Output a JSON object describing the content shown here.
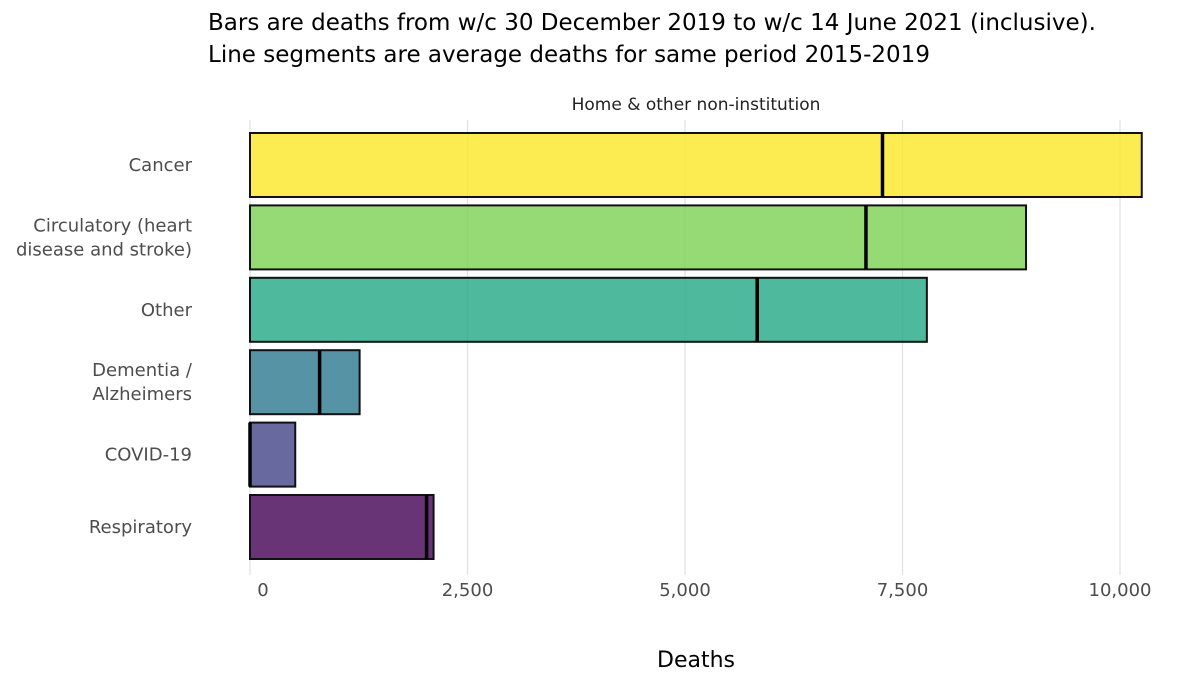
{
  "title_lines": [
    "Bars are deaths from w/c 30 December 2019 to w/c 14 June 2021 (inclusive).",
    "Line segments are average deaths for same period 2015-2019"
  ],
  "chart_data": {
    "type": "bar",
    "orientation": "horizontal",
    "facet": "Home & other non-institution",
    "xlabel": "Deaths",
    "ylabel": "",
    "xlim": [
      0,
      10500
    ],
    "xticks": [
      0,
      2500,
      5000,
      7500,
      10000
    ],
    "xtick_labels": [
      "0",
      "2,500",
      "5,000",
      "7,500",
      "10,000"
    ],
    "grid": "vertical major",
    "categories": [
      {
        "label": [
          "Cancer"
        ],
        "value": 10250,
        "average": 7270,
        "color": "#fde725"
      },
      {
        "label": [
          "Circulatory (heart",
          "disease and stroke)"
        ],
        "value": 8920,
        "average": 7080,
        "color": "#7ad151"
      },
      {
        "label": [
          "Other"
        ],
        "value": 7780,
        "average": 5830,
        "color": "#22a884"
      },
      {
        "label": [
          "Dementia /",
          "Alzheimers"
        ],
        "value": 1260,
        "average": 800,
        "color": "#2a788e"
      },
      {
        "label": [
          "COVID-19"
        ],
        "value": 520,
        "average": 0,
        "color": "#414487"
      },
      {
        "label": [
          "Respiratory"
        ],
        "value": 2110,
        "average": 2030,
        "color": "#440154"
      }
    ]
  }
}
